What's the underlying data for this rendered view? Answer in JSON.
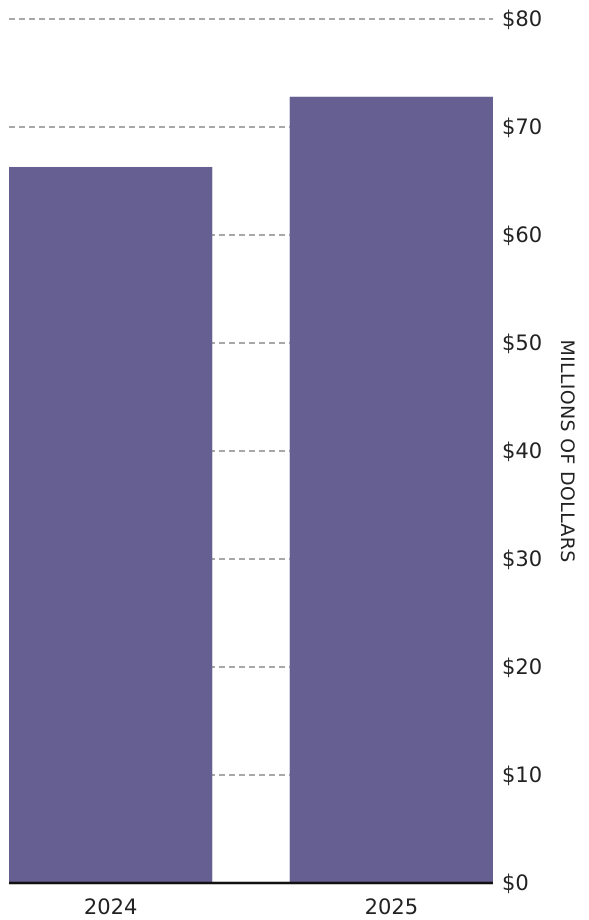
{
  "chart_data": {
    "type": "bar",
    "title": "",
    "categories": [
      "2024",
      "2025"
    ],
    "values": [
      66.3,
      72.8
    ],
    "bar_color": "#665f91",
    "ylabel": "MILLIONS OF DOLLARS",
    "ylim": [
      0,
      80
    ],
    "y_ticks": [
      {
        "value": 0,
        "label": "$0"
      },
      {
        "value": 10,
        "label": "$10"
      },
      {
        "value": 20,
        "label": "$20"
      },
      {
        "value": 30,
        "label": "$30"
      },
      {
        "value": 40,
        "label": "$40"
      },
      {
        "value": 50,
        "label": "$50"
      },
      {
        "value": 60,
        "label": "$60"
      },
      {
        "value": 70,
        "label": "$70"
      },
      {
        "value": 80,
        "label": "$80"
      }
    ],
    "y_axis_position": "right",
    "grid": "dashed"
  }
}
